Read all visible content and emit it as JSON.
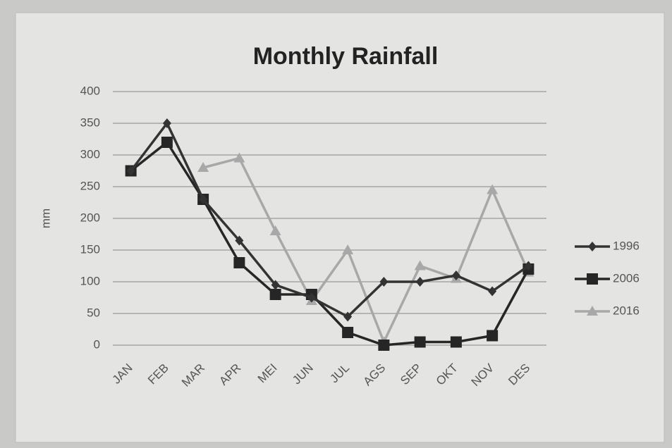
{
  "chart_data": {
    "type": "line",
    "title": "Monthly Rainfall",
    "y_label": "mm",
    "categories": [
      "JAN",
      "FEB",
      "MAR",
      "APR",
      "MEI",
      "JUN",
      "JUL",
      "AGS",
      "SEP",
      "OKT",
      "NOV",
      "DES"
    ],
    "series": [
      {
        "name": "1996",
        "color": "#333333",
        "marker": "diamond",
        "values": [
          275,
          350,
          230,
          165,
          95,
          75,
          45,
          100,
          100,
          110,
          85,
          125
        ]
      },
      {
        "name": "2006",
        "color": "#262626",
        "marker": "square",
        "values": [
          275,
          320,
          230,
          130,
          80,
          80,
          20,
          0,
          5,
          5,
          15,
          120
        ]
      },
      {
        "name": "2016",
        "color": "#a8a8a8",
        "marker": "triangle",
        "values": [
          null,
          null,
          280,
          295,
          180,
          70,
          150,
          5,
          125,
          105,
          245,
          115
        ]
      }
    ],
    "ylim": [
      0,
      400
    ],
    "yticks": [
      0,
      50,
      100,
      150,
      200,
      250,
      300,
      350,
      400
    ],
    "grid": true,
    "legend": "right"
  }
}
